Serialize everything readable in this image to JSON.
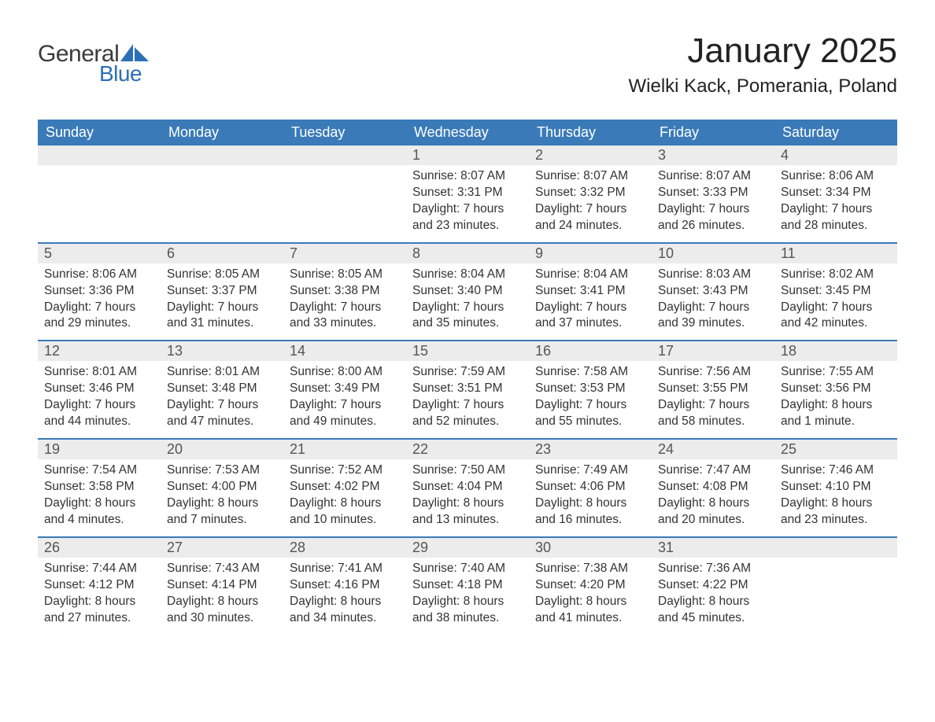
{
  "logo": {
    "word1": "General",
    "word2": "Blue",
    "word1_color": "#3b3b3b",
    "word2_color": "#2d6fb6",
    "flag_color": "#2d6fb6"
  },
  "header": {
    "month_title": "January 2025",
    "location": "Wielki Kack, Pomerania, Poland"
  },
  "styling": {
    "header_band_color": "#3a7ab8",
    "header_text_color": "#ffffff",
    "day_number_bg": "#ececec",
    "day_number_color": "#555555",
    "row_divider_color": "#3a7ab8",
    "body_text_color": "#333333",
    "background_color": "#ffffff",
    "month_title_fontsize": 44,
    "location_fontsize": 24,
    "weekday_fontsize": 18,
    "daynum_fontsize": 18,
    "body_fontsize": 15.5
  },
  "weekdays": [
    "Sunday",
    "Monday",
    "Tuesday",
    "Wednesday",
    "Thursday",
    "Friday",
    "Saturday"
  ],
  "weeks": [
    [
      {
        "n": "",
        "sunrise": "",
        "sunset": "",
        "day1": "",
        "day2": ""
      },
      {
        "n": "",
        "sunrise": "",
        "sunset": "",
        "day1": "",
        "day2": ""
      },
      {
        "n": "",
        "sunrise": "",
        "sunset": "",
        "day1": "",
        "day2": ""
      },
      {
        "n": "1",
        "sunrise": "Sunrise: 8:07 AM",
        "sunset": "Sunset: 3:31 PM",
        "day1": "Daylight: 7 hours",
        "day2": "and 23 minutes."
      },
      {
        "n": "2",
        "sunrise": "Sunrise: 8:07 AM",
        "sunset": "Sunset: 3:32 PM",
        "day1": "Daylight: 7 hours",
        "day2": "and 24 minutes."
      },
      {
        "n": "3",
        "sunrise": "Sunrise: 8:07 AM",
        "sunset": "Sunset: 3:33 PM",
        "day1": "Daylight: 7 hours",
        "day2": "and 26 minutes."
      },
      {
        "n": "4",
        "sunrise": "Sunrise: 8:06 AM",
        "sunset": "Sunset: 3:34 PM",
        "day1": "Daylight: 7 hours",
        "day2": "and 28 minutes."
      }
    ],
    [
      {
        "n": "5",
        "sunrise": "Sunrise: 8:06 AM",
        "sunset": "Sunset: 3:36 PM",
        "day1": "Daylight: 7 hours",
        "day2": "and 29 minutes."
      },
      {
        "n": "6",
        "sunrise": "Sunrise: 8:05 AM",
        "sunset": "Sunset: 3:37 PM",
        "day1": "Daylight: 7 hours",
        "day2": "and 31 minutes."
      },
      {
        "n": "7",
        "sunrise": "Sunrise: 8:05 AM",
        "sunset": "Sunset: 3:38 PM",
        "day1": "Daylight: 7 hours",
        "day2": "and 33 minutes."
      },
      {
        "n": "8",
        "sunrise": "Sunrise: 8:04 AM",
        "sunset": "Sunset: 3:40 PM",
        "day1": "Daylight: 7 hours",
        "day2": "and 35 minutes."
      },
      {
        "n": "9",
        "sunrise": "Sunrise: 8:04 AM",
        "sunset": "Sunset: 3:41 PM",
        "day1": "Daylight: 7 hours",
        "day2": "and 37 minutes."
      },
      {
        "n": "10",
        "sunrise": "Sunrise: 8:03 AM",
        "sunset": "Sunset: 3:43 PM",
        "day1": "Daylight: 7 hours",
        "day2": "and 39 minutes."
      },
      {
        "n": "11",
        "sunrise": "Sunrise: 8:02 AM",
        "sunset": "Sunset: 3:45 PM",
        "day1": "Daylight: 7 hours",
        "day2": "and 42 minutes."
      }
    ],
    [
      {
        "n": "12",
        "sunrise": "Sunrise: 8:01 AM",
        "sunset": "Sunset: 3:46 PM",
        "day1": "Daylight: 7 hours",
        "day2": "and 44 minutes."
      },
      {
        "n": "13",
        "sunrise": "Sunrise: 8:01 AM",
        "sunset": "Sunset: 3:48 PM",
        "day1": "Daylight: 7 hours",
        "day2": "and 47 minutes."
      },
      {
        "n": "14",
        "sunrise": "Sunrise: 8:00 AM",
        "sunset": "Sunset: 3:49 PM",
        "day1": "Daylight: 7 hours",
        "day2": "and 49 minutes."
      },
      {
        "n": "15",
        "sunrise": "Sunrise: 7:59 AM",
        "sunset": "Sunset: 3:51 PM",
        "day1": "Daylight: 7 hours",
        "day2": "and 52 minutes."
      },
      {
        "n": "16",
        "sunrise": "Sunrise: 7:58 AM",
        "sunset": "Sunset: 3:53 PM",
        "day1": "Daylight: 7 hours",
        "day2": "and 55 minutes."
      },
      {
        "n": "17",
        "sunrise": "Sunrise: 7:56 AM",
        "sunset": "Sunset: 3:55 PM",
        "day1": "Daylight: 7 hours",
        "day2": "and 58 minutes."
      },
      {
        "n": "18",
        "sunrise": "Sunrise: 7:55 AM",
        "sunset": "Sunset: 3:56 PM",
        "day1": "Daylight: 8 hours",
        "day2": "and 1 minute."
      }
    ],
    [
      {
        "n": "19",
        "sunrise": "Sunrise: 7:54 AM",
        "sunset": "Sunset: 3:58 PM",
        "day1": "Daylight: 8 hours",
        "day2": "and 4 minutes."
      },
      {
        "n": "20",
        "sunrise": "Sunrise: 7:53 AM",
        "sunset": "Sunset: 4:00 PM",
        "day1": "Daylight: 8 hours",
        "day2": "and 7 minutes."
      },
      {
        "n": "21",
        "sunrise": "Sunrise: 7:52 AM",
        "sunset": "Sunset: 4:02 PM",
        "day1": "Daylight: 8 hours",
        "day2": "and 10 minutes."
      },
      {
        "n": "22",
        "sunrise": "Sunrise: 7:50 AM",
        "sunset": "Sunset: 4:04 PM",
        "day1": "Daylight: 8 hours",
        "day2": "and 13 minutes."
      },
      {
        "n": "23",
        "sunrise": "Sunrise: 7:49 AM",
        "sunset": "Sunset: 4:06 PM",
        "day1": "Daylight: 8 hours",
        "day2": "and 16 minutes."
      },
      {
        "n": "24",
        "sunrise": "Sunrise: 7:47 AM",
        "sunset": "Sunset: 4:08 PM",
        "day1": "Daylight: 8 hours",
        "day2": "and 20 minutes."
      },
      {
        "n": "25",
        "sunrise": "Sunrise: 7:46 AM",
        "sunset": "Sunset: 4:10 PM",
        "day1": "Daylight: 8 hours",
        "day2": "and 23 minutes."
      }
    ],
    [
      {
        "n": "26",
        "sunrise": "Sunrise: 7:44 AM",
        "sunset": "Sunset: 4:12 PM",
        "day1": "Daylight: 8 hours",
        "day2": "and 27 minutes."
      },
      {
        "n": "27",
        "sunrise": "Sunrise: 7:43 AM",
        "sunset": "Sunset: 4:14 PM",
        "day1": "Daylight: 8 hours",
        "day2": "and 30 minutes."
      },
      {
        "n": "28",
        "sunrise": "Sunrise: 7:41 AM",
        "sunset": "Sunset: 4:16 PM",
        "day1": "Daylight: 8 hours",
        "day2": "and 34 minutes."
      },
      {
        "n": "29",
        "sunrise": "Sunrise: 7:40 AM",
        "sunset": "Sunset: 4:18 PM",
        "day1": "Daylight: 8 hours",
        "day2": "and 38 minutes."
      },
      {
        "n": "30",
        "sunrise": "Sunrise: 7:38 AM",
        "sunset": "Sunset: 4:20 PM",
        "day1": "Daylight: 8 hours",
        "day2": "and 41 minutes."
      },
      {
        "n": "31",
        "sunrise": "Sunrise: 7:36 AM",
        "sunset": "Sunset: 4:22 PM",
        "day1": "Daylight: 8 hours",
        "day2": "and 45 minutes."
      },
      {
        "n": "",
        "sunrise": "",
        "sunset": "",
        "day1": "",
        "day2": ""
      }
    ]
  ]
}
